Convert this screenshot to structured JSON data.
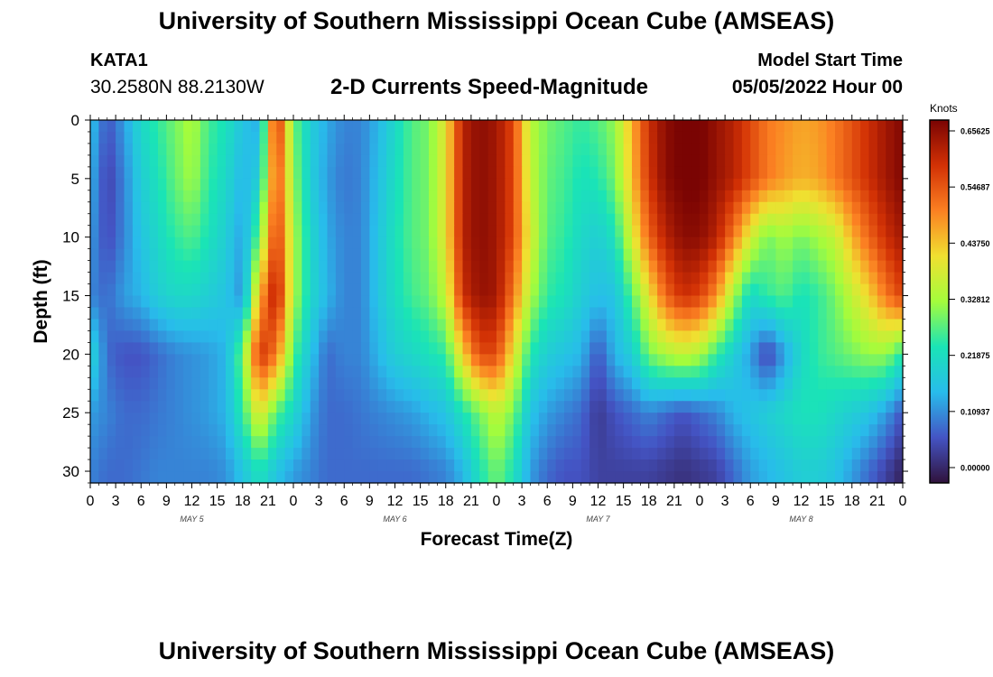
{
  "header": {
    "title": "University of Southern Mississippi Ocean Cube (AMSEAS)",
    "station_id": "KATA1",
    "coordinates": "30.2580N  88.2130W",
    "plot_title": "2-D Currents Speed-Magnitude",
    "start_label": "Model Start Time",
    "start_value": "05/05/2022 Hour 00"
  },
  "footer": {
    "title": "University of Southern Mississippi Ocean Cube (AMSEAS)"
  },
  "chart_data": {
    "type": "heatmap",
    "xlabel": "Forecast Time(Z)",
    "ylabel": "Depth (ft)",
    "x_units": "hours from model start",
    "xlim": [
      0,
      96
    ],
    "ylim": [
      0,
      31
    ],
    "y_ticks": [
      0,
      5,
      10,
      15,
      20,
      25,
      30
    ],
    "x_tick_labels": [
      "0",
      "3",
      "6",
      "9",
      "12",
      "15",
      "18",
      "21",
      "0",
      "3",
      "6",
      "9",
      "12",
      "15",
      "18",
      "21",
      "0",
      "3",
      "6",
      "9",
      "12",
      "15",
      "18",
      "21",
      "0",
      "3",
      "6",
      "9",
      "12",
      "15",
      "18",
      "21",
      "0"
    ],
    "day_labels": [
      {
        "label": "MAY 5",
        "hour": 12
      },
      {
        "label": "MAY 6",
        "hour": 36
      },
      {
        "label": "MAY 7",
        "hour": 60
      },
      {
        "label": "MAY 8",
        "hour": 84
      }
    ],
    "colorbar": {
      "units": "Knots",
      "min": 0.0,
      "max": 0.65625,
      "tick_labels": [
        "0.65625",
        "0.54687",
        "0.43750",
        "0.32812",
        "0.21875",
        "0.10937",
        "0.00000"
      ],
      "colors": [
        "#30123b",
        "#4454c4",
        "#28bceb",
        "#1ae4b6",
        "#a4fc3c",
        "#f0e030",
        "#fb8022",
        "#d23105",
        "#7a0403"
      ]
    },
    "time_hours": [
      0,
      2,
      4,
      6,
      8,
      10,
      12,
      14,
      16,
      18,
      20,
      22,
      24,
      26,
      28,
      30,
      32,
      34,
      36,
      38,
      40,
      42,
      44,
      46,
      48,
      50,
      52,
      54,
      56,
      58,
      60,
      62,
      64,
      66,
      68,
      70,
      72,
      74,
      76,
      78,
      80,
      82,
      84,
      86,
      88,
      90,
      92,
      94,
      96
    ],
    "depth_ft": [
      0,
      5,
      10,
      15,
      20,
      25,
      30
    ],
    "speed_knots": [
      [
        0.18,
        0.08,
        0.14,
        0.22,
        0.26,
        0.3,
        0.34,
        0.27,
        0.24,
        0.18,
        0.15,
        0.6,
        0.3,
        0.2,
        0.15,
        0.12,
        0.12,
        0.16,
        0.22,
        0.28,
        0.3,
        0.4,
        0.6,
        0.64,
        0.62,
        0.55,
        0.35,
        0.3,
        0.28,
        0.26,
        0.28,
        0.32,
        0.45,
        0.58,
        0.64,
        0.66,
        0.66,
        0.63,
        0.6,
        0.55,
        0.5,
        0.48,
        0.46,
        0.47,
        0.5,
        0.54,
        0.58,
        0.62,
        0.65
      ],
      [
        0.16,
        0.06,
        0.12,
        0.2,
        0.24,
        0.29,
        0.33,
        0.26,
        0.22,
        0.16,
        0.2,
        0.55,
        0.32,
        0.2,
        0.14,
        0.11,
        0.12,
        0.17,
        0.23,
        0.28,
        0.3,
        0.4,
        0.6,
        0.64,
        0.62,
        0.55,
        0.36,
        0.29,
        0.27,
        0.24,
        0.25,
        0.3,
        0.44,
        0.57,
        0.64,
        0.66,
        0.66,
        0.63,
        0.6,
        0.55,
        0.5,
        0.47,
        0.45,
        0.46,
        0.5,
        0.54,
        0.58,
        0.62,
        0.65
      ],
      [
        0.14,
        0.07,
        0.12,
        0.18,
        0.22,
        0.26,
        0.28,
        0.24,
        0.2,
        0.14,
        0.3,
        0.58,
        0.34,
        0.22,
        0.15,
        0.12,
        0.12,
        0.18,
        0.24,
        0.28,
        0.3,
        0.4,
        0.6,
        0.64,
        0.62,
        0.55,
        0.38,
        0.28,
        0.26,
        0.22,
        0.2,
        0.24,
        0.38,
        0.52,
        0.6,
        0.64,
        0.64,
        0.6,
        0.5,
        0.38,
        0.3,
        0.33,
        0.3,
        0.33,
        0.36,
        0.45,
        0.52,
        0.58,
        0.62
      ],
      [
        0.12,
        0.1,
        0.14,
        0.16,
        0.2,
        0.22,
        0.22,
        0.2,
        0.18,
        0.13,
        0.45,
        0.62,
        0.34,
        0.22,
        0.16,
        0.12,
        0.12,
        0.18,
        0.23,
        0.27,
        0.29,
        0.36,
        0.58,
        0.63,
        0.62,
        0.5,
        0.34,
        0.26,
        0.24,
        0.2,
        0.17,
        0.18,
        0.28,
        0.4,
        0.52,
        0.58,
        0.56,
        0.48,
        0.33,
        0.22,
        0.26,
        0.28,
        0.24,
        0.26,
        0.3,
        0.36,
        0.42,
        0.5,
        0.56
      ],
      [
        0.22,
        0.1,
        0.08,
        0.08,
        0.1,
        0.12,
        0.13,
        0.14,
        0.16,
        0.3,
        0.58,
        0.5,
        0.28,
        0.18,
        0.1,
        0.12,
        0.12,
        0.16,
        0.2,
        0.22,
        0.24,
        0.26,
        0.42,
        0.55,
        0.55,
        0.4,
        0.25,
        0.2,
        0.18,
        0.16,
        0.08,
        0.16,
        0.2,
        0.3,
        0.34,
        0.36,
        0.34,
        0.26,
        0.2,
        0.14,
        0.06,
        0.14,
        0.22,
        0.26,
        0.28,
        0.3,
        0.32,
        0.32,
        0.25
      ],
      [
        0.14,
        0.12,
        0.1,
        0.1,
        0.11,
        0.12,
        0.13,
        0.14,
        0.16,
        0.26,
        0.4,
        0.28,
        0.22,
        0.14,
        0.1,
        0.1,
        0.11,
        0.12,
        0.13,
        0.14,
        0.16,
        0.18,
        0.24,
        0.3,
        0.36,
        0.3,
        0.18,
        0.14,
        0.12,
        0.1,
        0.05,
        0.08,
        0.1,
        0.12,
        0.1,
        0.08,
        0.1,
        0.12,
        0.16,
        0.18,
        0.2,
        0.22,
        0.24,
        0.24,
        0.22,
        0.2,
        0.18,
        0.14,
        0.08
      ],
      [
        0.12,
        0.1,
        0.1,
        0.11,
        0.12,
        0.12,
        0.12,
        0.12,
        0.13,
        0.18,
        0.24,
        0.18,
        0.14,
        0.12,
        0.1,
        0.1,
        0.1,
        0.1,
        0.1,
        0.1,
        0.11,
        0.12,
        0.16,
        0.24,
        0.3,
        0.24,
        0.14,
        0.1,
        0.08,
        0.08,
        0.06,
        0.06,
        0.06,
        0.06,
        0.05,
        0.04,
        0.05,
        0.06,
        0.1,
        0.14,
        0.16,
        0.18,
        0.2,
        0.2,
        0.18,
        0.14,
        0.1,
        0.06,
        0.02
      ]
    ]
  }
}
